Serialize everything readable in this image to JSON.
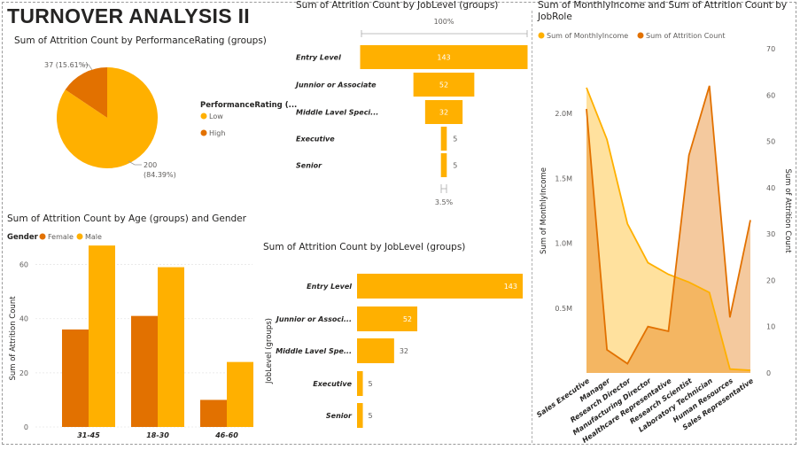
{
  "page": {
    "title": "TURNOVER ANALYSIS II"
  },
  "colors": {
    "male_low_income": "#FFB000",
    "female_high_attrition": "#E27100"
  },
  "chart_data": [
    {
      "id": "perf_pie",
      "type": "pie",
      "title": "Sum of Attrition Count by PerformanceRating (groups)",
      "legend_title": "PerformanceRating (...",
      "slices": [
        {
          "name": "Low",
          "value": 200,
          "label": "200",
          "pct": "(84.39%)",
          "color": "#FFB000"
        },
        {
          "name": "High",
          "value": 37,
          "label": "37 (15.61%)",
          "pct": "",
          "color": "#E27100"
        }
      ]
    },
    {
      "id": "joblevel_funnel",
      "type": "bar",
      "subtype": "funnel",
      "title": "Sum of Attrition Count by JobLevel (groups)",
      "top_pct": "100%",
      "bottom_pct": "3.5%",
      "categories": [
        "Entry Level",
        "Junnior or Associate",
        "Middle Lavel Speci...",
        "Executive",
        "Senior"
      ],
      "values": [
        143,
        52,
        32,
        5,
        5
      ]
    },
    {
      "id": "age_gender",
      "type": "bar",
      "title": "Sum of Attrition Count by Age (groups) and Gender",
      "legend_title": "Gender",
      "categories": [
        "31-45",
        "18-30",
        "46-60"
      ],
      "ylabel": "Sum of Attrition Count",
      "ylim": [
        0,
        70
      ],
      "yticks": [
        0,
        20,
        40,
        60
      ],
      "series": [
        {
          "name": "Female",
          "values": [
            36,
            41,
            10
          ],
          "color": "#E27100"
        },
        {
          "name": "Male",
          "values": [
            67,
            59,
            24
          ],
          "color": "#FFB000"
        }
      ]
    },
    {
      "id": "joblevel_bar",
      "type": "bar",
      "title": "Sum of Attrition Count by JobLevel (groups)",
      "ylabel": "JobLevel (groups)",
      "categories": [
        "Entry Level",
        "Junnior or Associ...",
        "Middle Lavel Spe...",
        "Executive",
        "Senior"
      ],
      "values": [
        143,
        52,
        32,
        5,
        5
      ]
    },
    {
      "id": "income_attrition",
      "type": "area",
      "title": "Sum of MonthlyIncome and Sum of Attrition Count by JobRole",
      "ylabel_left": "Sum of MonthlyIncome",
      "ylabel_right": "Sum of Attrition Count",
      "left_ticks": [
        "0.5M",
        "1.0M",
        "1.5M",
        "2.0M"
      ],
      "right_ticks": [
        "0",
        "10",
        "20",
        "30",
        "40",
        "50",
        "60",
        "70"
      ],
      "left_ylim": [
        0,
        2500000
      ],
      "right_ylim": [
        0,
        70
      ],
      "categories": [
        "Sales Executive",
        "Manager",
        "Research Director",
        "Manufacturing Director",
        "Healthcare Representative",
        "Research Scientist",
        "Laboratory Technician",
        "Human Resources",
        "Sales Representative"
      ],
      "series": [
        {
          "name": "Sum of MonthlyIncome",
          "axis": "left",
          "color": "#FFB000",
          "values": [
            2200000,
            1800000,
            1150000,
            850000,
            760000,
            700000,
            620000,
            30000,
            20000
          ]
        },
        {
          "name": "Sum of Attrition Count",
          "axis": "right",
          "color": "#E27100",
          "values": [
            57,
            5,
            2,
            10,
            9,
            47,
            62,
            12,
            33
          ]
        }
      ]
    }
  ]
}
